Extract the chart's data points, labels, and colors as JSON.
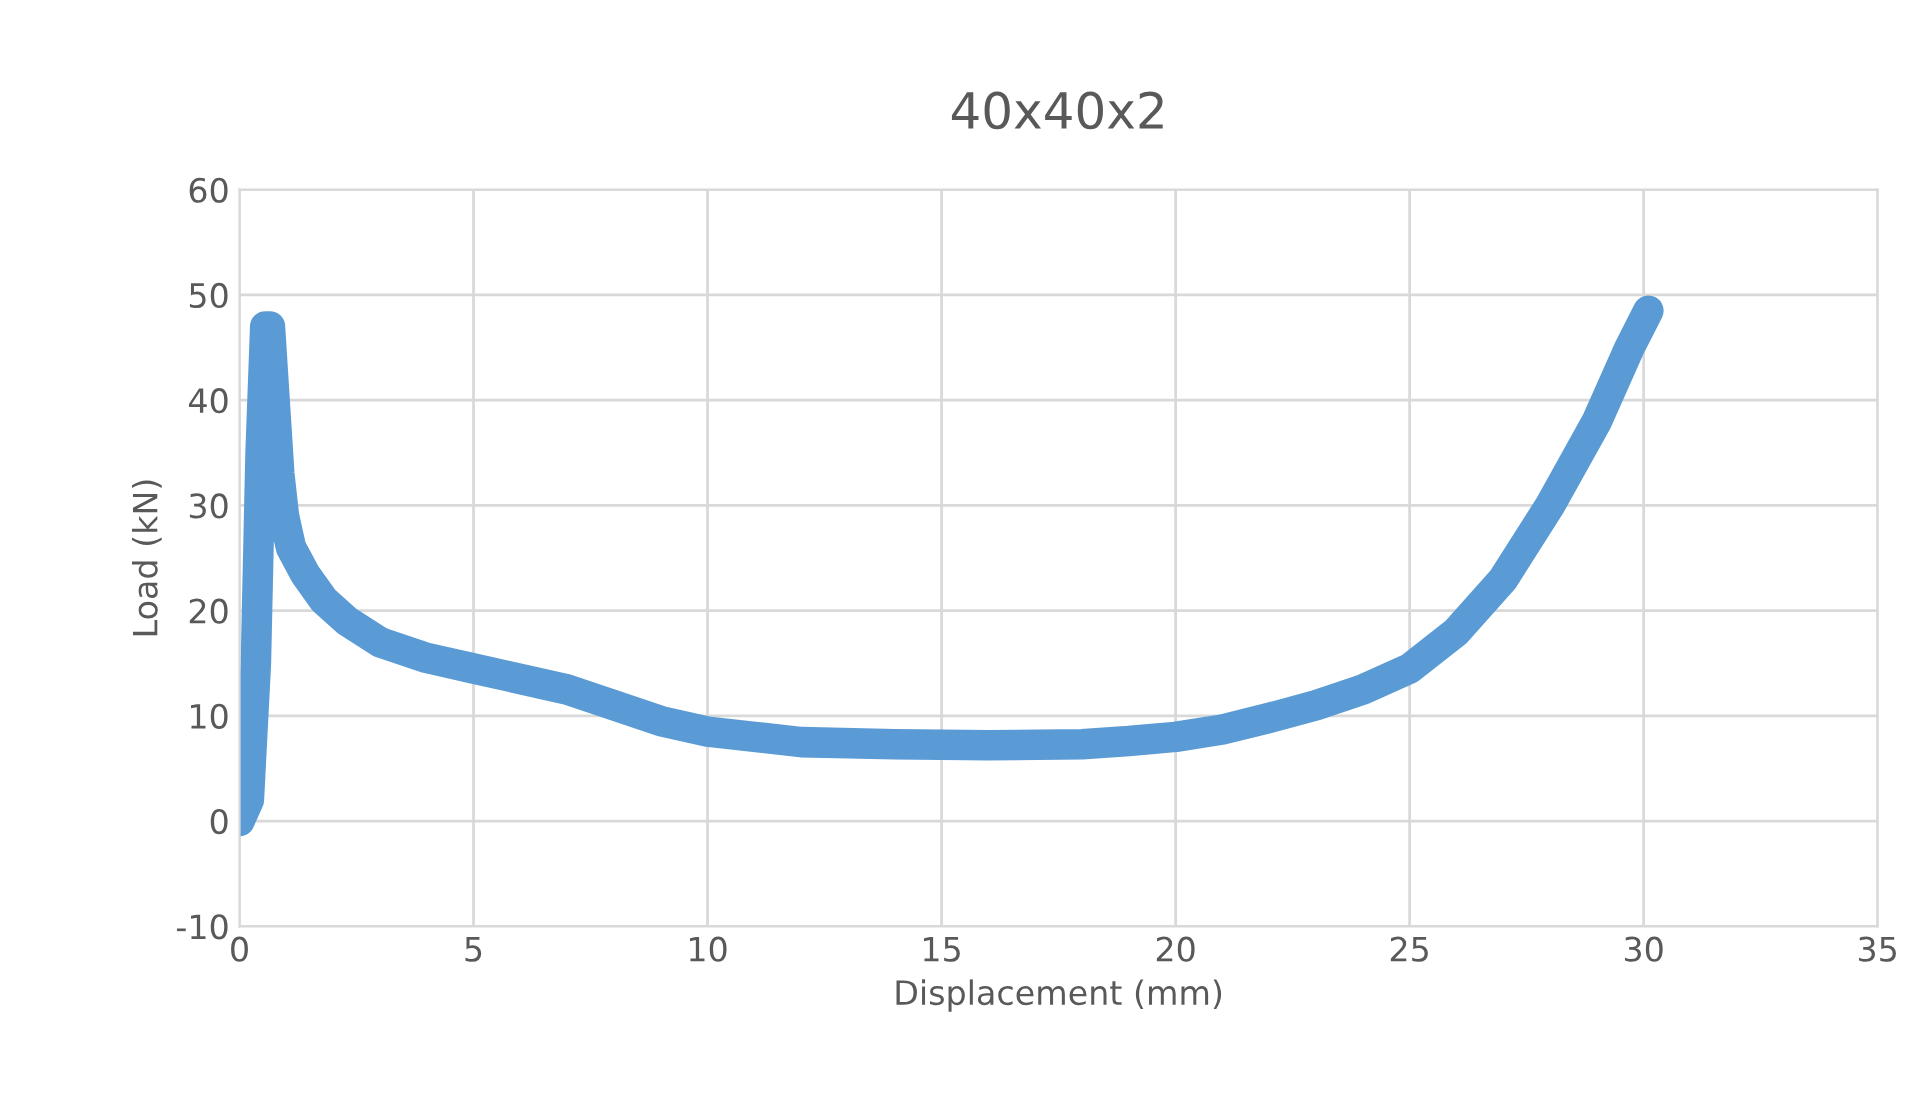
{
  "chart_data": {
    "type": "line",
    "title": "40x40x2",
    "xlabel": "Displacement (mm)",
    "ylabel": "Load (kN)",
    "series": [
      {
        "color": "#5b9bd5",
        "x": [
          0,
          0.2,
          0.35,
          0.45,
          0.55,
          0.65,
          0.75,
          0.85,
          0.95,
          1.1,
          1.4,
          1.8,
          2.3,
          3,
          4,
          5,
          6,
          7,
          8,
          9,
          10,
          11,
          12,
          14,
          16,
          18,
          19,
          20,
          21,
          22,
          23,
          24,
          25,
          26,
          27,
          28,
          29,
          29.7,
          30.1
        ],
        "values": [
          0,
          2,
          15,
          35,
          47,
          47,
          40,
          33,
          29,
          26,
          23.5,
          21,
          19,
          17,
          15.5,
          14.5,
          13.5,
          12.5,
          11,
          9.5,
          8.5,
          8,
          7.5,
          7.3,
          7.2,
          7.3,
          7.6,
          8,
          8.7,
          9.8,
          11,
          12.5,
          14.5,
          18,
          23,
          30,
          38,
          45,
          48.5
        ]
      }
    ],
    "xlim": [
      0,
      35
    ],
    "xticks": [
      0,
      5,
      10,
      15,
      20,
      25,
      30,
      35
    ],
    "ylim": [
      -10,
      60
    ],
    "yticks": [
      -10,
      0,
      10,
      20,
      30,
      40,
      50,
      60
    ],
    "grid": true,
    "line_style": "solid"
  }
}
